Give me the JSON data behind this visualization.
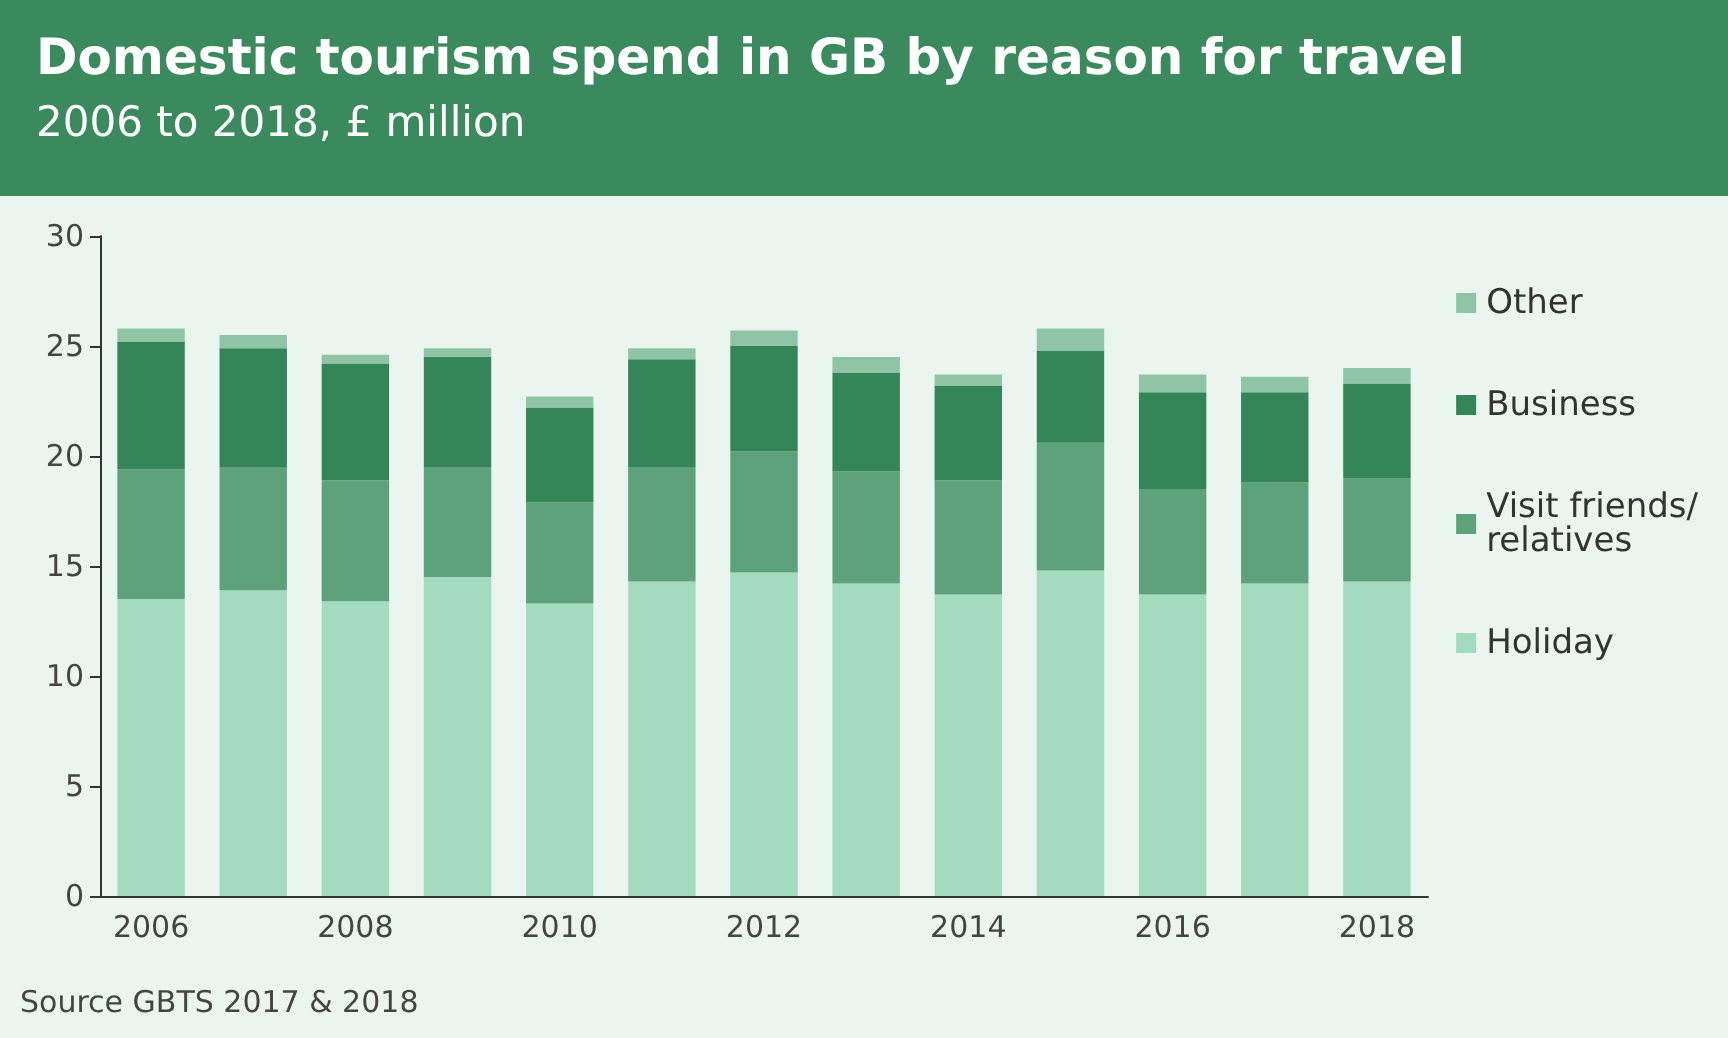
{
  "chart_data": {
    "type": "bar",
    "title": "Domestic tourism spend in GB by reason for travel",
    "subtitle": "2006 to 2018, £ million",
    "categories": [
      "2006",
      null,
      "2008",
      null,
      "2010",
      null,
      "2012",
      null,
      "2014",
      null,
      "2016",
      null,
      "2018"
    ],
    "series": [
      {
        "name": "Holiday",
        "color": "#a3dbbf",
        "values": [
          13.5,
          13.9,
          13.4,
          14.5,
          13.3,
          14.3,
          14.7,
          14.2,
          13.7,
          14.8,
          13.7,
          14.2,
          14.3
        ]
      },
      {
        "name": "Visit friends/relatives",
        "color": "#5ea27c",
        "values": [
          5.9,
          5.6,
          5.5,
          5.0,
          4.6,
          5.2,
          5.5,
          5.1,
          5.2,
          5.8,
          4.8,
          4.6,
          4.7
        ]
      },
      {
        "name": "Business",
        "color": "#348558",
        "values": [
          5.8,
          5.4,
          5.3,
          5.0,
          4.3,
          4.9,
          4.8,
          4.5,
          4.3,
          4.2,
          4.4,
          4.1,
          4.3
        ]
      },
      {
        "name": "Other",
        "color": "#8fc4a7",
        "values": [
          0.6,
          0.6,
          0.4,
          0.4,
          0.5,
          0.5,
          0.7,
          0.7,
          0.5,
          1.0,
          0.8,
          0.7,
          0.7
        ]
      }
    ],
    "stacked": true,
    "ylim": [
      0,
      30
    ],
    "yticks": [
      0,
      5,
      10,
      15,
      20,
      25,
      30
    ],
    "grid": false,
    "legend": "right",
    "annotations": [
      "Source GBTS 2017 & 2018"
    ]
  }
}
